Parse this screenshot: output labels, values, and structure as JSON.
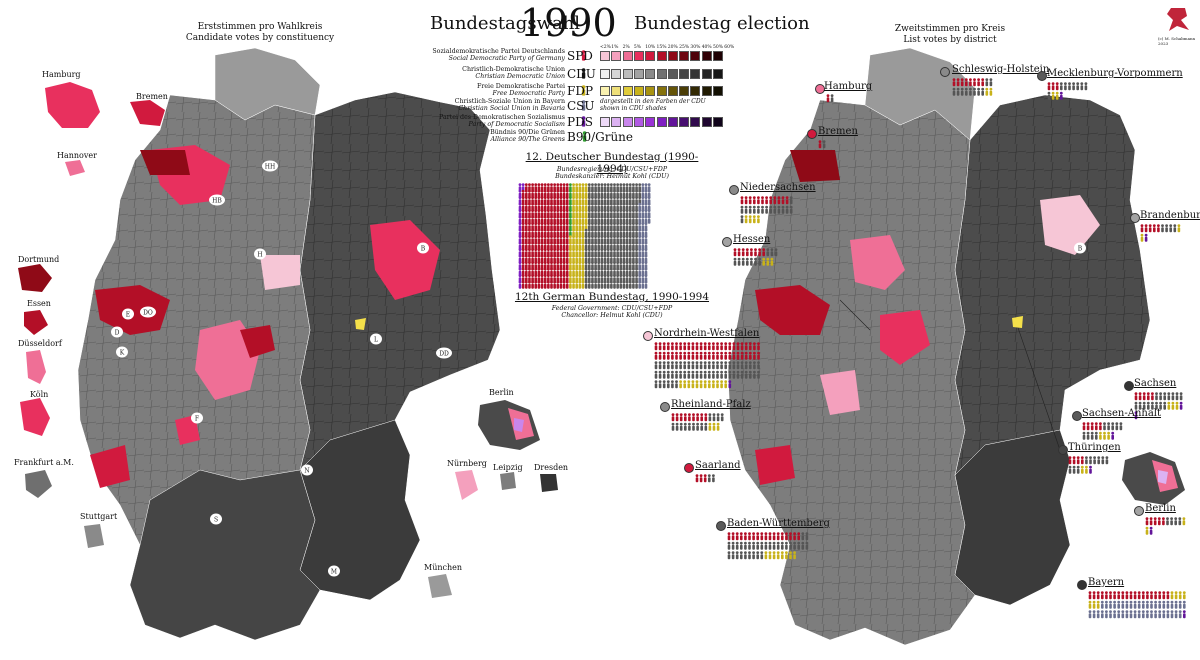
{
  "title": {
    "de": "Bundestagswahl",
    "year": "1990",
    "en": "Bundestag election"
  },
  "left_map": {
    "title_de": "Erststimmen pro Wahlkreis",
    "title_en": "Candidate votes by constituency"
  },
  "right_map": {
    "title_de": "Zweitstimmen pro Kreis",
    "title_en": "List votes by district"
  },
  "signature": "(c) M. Schabmann 2023",
  "colors": {
    "spd": [
      "#f6c6d6",
      "#f4a0bd",
      "#ef6f96",
      "#e8305e",
      "#d11a3e",
      "#b30f27",
      "#8f0a17",
      "#6e0510",
      "#4e020a",
      "#320106",
      "#1e0003"
    ],
    "cdu": [
      "#f0f0f0",
      "#d6d6d6",
      "#bdbdbd",
      "#a3a3a3",
      "#8a8a8a",
      "#717171",
      "#5a5a5a",
      "#454545",
      "#343434",
      "#252525",
      "#151515"
    ],
    "fdp": [
      "#faf2b0",
      "#efe07a",
      "#e0cc3c",
      "#c8b21a",
      "#a89312",
      "#85720d",
      "#655509",
      "#4a3d06",
      "#332a04",
      "#211b02",
      "#120f01"
    ],
    "pds": [
      "#eedaf8",
      "#dcb2f2",
      "#c986ec",
      "#b15ae3",
      "#9a33d6",
      "#7f1fc2",
      "#621599",
      "#470e70",
      "#300a4c",
      "#1f0630",
      "#10031a"
    ],
    "fdp_yellow": "#f4e04a",
    "csu_blue": "#6b7090",
    "green": "#2fa02f"
  },
  "legend": {
    "percent_labels": [
      "<2%",
      "1%",
      "2%",
      "5%",
      "10%",
      "15%",
      "20%",
      "25%",
      "30%",
      "40%",
      "50%",
      "60%"
    ],
    "parties": [
      {
        "key": "spd",
        "de": "Sozialdemokratische Partei Deutschlands",
        "en": "Social Democratic Party of Germany",
        "abbr": "SPD",
        "fig_icon": "person-icon"
      },
      {
        "key": "cdu",
        "de": "Christlich-Demokratische Union",
        "en": "Christian Democratic Union",
        "abbr": "CDU",
        "fig_icon": "person-icon"
      },
      {
        "key": "fdp",
        "de": "Freie Demokratische Partei",
        "en": "Free Democratic Party",
        "abbr": "FDP",
        "fig_icon": "person-icon"
      },
      {
        "key": "csu",
        "de": "Christlich-Soziale Union in Bayern",
        "en": "Christian Social Union in Bavaria",
        "abbr": "CSU",
        "fig_icon": "person-icon",
        "note": "dargestellt in den Farben der CDU shown in CDU shades"
      },
      {
        "key": "pds",
        "de": "Partei des Demokratischen Sozialismus",
        "en": "Party of Democratic Socialism",
        "abbr": "PDS",
        "fig_icon": "person-icon"
      },
      {
        "key": "grn",
        "de": "Bündnis 90/Die Grünen",
        "en": "Alliance 90/The Greens",
        "abbr": "B90/Grüne",
        "fig_icon": "person-icon"
      }
    ]
  },
  "bundestag": {
    "heading_de": "12. Deutscher Bundestag (1990-1994)",
    "gov_de": "Bundesregierung: CDU/CSU+FDP",
    "chancellor_de": "Bundeskanzler: Helmut Kohl (CDU)",
    "heading_en": "12th German Bundestag, 1990-1994",
    "gov_en": "Federal Government: CDU/CSU+FDP",
    "chancellor_en": "Chancellor: Helmut Kohl (CDU)",
    "seats": {
      "pds": 17,
      "spd": 239,
      "grn": 8,
      "fdp": 79,
      "cdu": 268,
      "csu": 51
    }
  },
  "cities_left": [
    {
      "name": "Hamburg"
    },
    {
      "name": "Bremen"
    },
    {
      "name": "Hannover"
    },
    {
      "name": "Dortmund"
    },
    {
      "name": "Essen"
    },
    {
      "name": "Düsseldorf"
    },
    {
      "name": "Köln"
    },
    {
      "name": "Frankfurt a.M."
    },
    {
      "name": "Stuttgart"
    }
  ],
  "cities_mid": [
    {
      "name": "Berlin"
    },
    {
      "name": "Nürnberg"
    },
    {
      "name": "Leipzig"
    },
    {
      "name": "Dresden"
    },
    {
      "name": "München"
    }
  ],
  "map_abbrev": [
    "HH",
    "HB",
    "H",
    "B",
    "DO",
    "E",
    "D",
    "K",
    "F",
    "S",
    "M",
    "N",
    "L",
    "DD"
  ],
  "states": [
    {
      "name": "Hamburg",
      "dot": "#ef6f96"
    },
    {
      "name": "Schleswig-Holstein",
      "dot": "#8a8a8a"
    },
    {
      "name": "Mecklenburg-Vorpommern",
      "dot": "#5a5a5a"
    },
    {
      "name": "Bremen",
      "dot": "#d11a3e"
    },
    {
      "name": "Niedersachsen",
      "dot": "#8a8a8a"
    },
    {
      "name": "Brandenburg",
      "dot": "#a3a3a3"
    },
    {
      "name": "Hessen",
      "dot": "#a3a3a3"
    },
    {
      "name": "Nordrhein-Westfalen",
      "dot": "#f6c6d6"
    },
    {
      "name": "Sachsen",
      "dot": "#343434"
    },
    {
      "name": "Sachsen-Anhalt",
      "dot": "#5a5a5a"
    },
    {
      "name": "Rheinland-Pfalz",
      "dot": "#8a8a8a"
    },
    {
      "name": "Thüringen",
      "dot": "#454545"
    },
    {
      "name": "Saarland",
      "dot": "#d11a3e"
    },
    {
      "name": "Berlin",
      "dot": "#a3a3a3"
    },
    {
      "name": "Baden-Württemberg",
      "dot": "#5a5a5a"
    },
    {
      "name": "Bayern",
      "dot": "#343434"
    }
  ]
}
